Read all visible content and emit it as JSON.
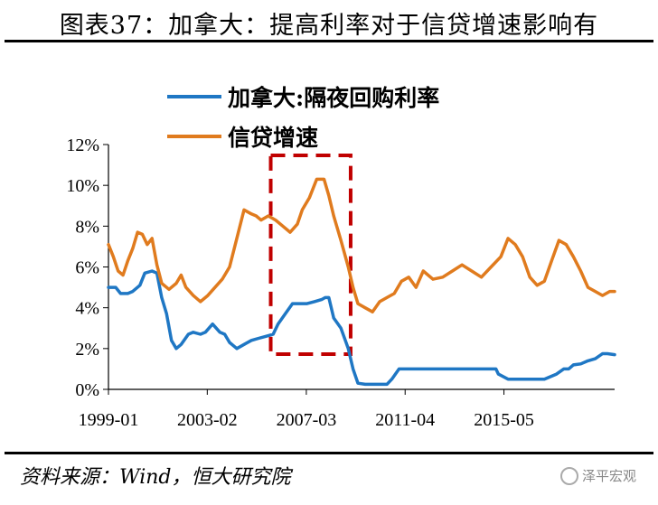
{
  "page": {
    "title": "图表37：加拿大：提高利率对于信贷增速影响有",
    "source": "资料来源：Wind，恒大研究院",
    "watermark": "泽平宏观"
  },
  "chart_data": {
    "type": "line",
    "title": "图表37：加拿大：提高利率对于信贷增速影响有",
    "xlabel": "",
    "ylabel": "",
    "ylim": [
      0,
      12
    ],
    "yticks": [
      0,
      2,
      4,
      6,
      8,
      10,
      12
    ],
    "ytick_labels": [
      "0%",
      "2%",
      "4%",
      "6%",
      "8%",
      "10%",
      "12%"
    ],
    "x_range": [
      1999.0,
      2019.9
    ],
    "xtick_labels": [
      "1999-01",
      "2003-02",
      "2007-03",
      "2011-04",
      "2015-05"
    ],
    "xtick_positions": [
      1999.0,
      2003.08,
      2007.17,
      2011.25,
      2015.33
    ],
    "highlight_range": [
      2005.7,
      2009.0
    ],
    "highlight_color": "#c00000",
    "legend_position": "top-left",
    "series": [
      {
        "name": "加拿大:隔夜回购利率",
        "color": "#1f77c4",
        "x": [
          1999.0,
          1999.3,
          1999.5,
          1999.8,
          2000.0,
          2000.3,
          2000.5,
          2000.8,
          2001.0,
          2001.2,
          2001.4,
          2001.6,
          2001.8,
          2002.0,
          2002.3,
          2002.5,
          2002.8,
          2003.0,
          2003.3,
          2003.6,
          2003.8,
          2004.0,
          2004.3,
          2004.6,
          2004.9,
          2005.2,
          2005.5,
          2005.8,
          2006.0,
          2006.3,
          2006.6,
          2006.9,
          2007.2,
          2007.5,
          2007.8,
          2007.95,
          2008.1,
          2008.3,
          2008.6,
          2008.9,
          2009.1,
          2009.3,
          2009.6,
          2010.0,
          2010.5,
          2010.7,
          2011.0,
          2012.0,
          2013.0,
          2014.0,
          2015.0,
          2015.1,
          2015.5,
          2016.0,
          2017.0,
          2017.5,
          2017.8,
          2018.0,
          2018.2,
          2018.5,
          2018.8,
          2019.1,
          2019.4,
          2019.6,
          2019.9
        ],
        "values": [
          5.0,
          5.0,
          4.7,
          4.7,
          4.8,
          5.1,
          5.7,
          5.8,
          5.7,
          4.5,
          3.7,
          2.4,
          2.0,
          2.2,
          2.7,
          2.8,
          2.7,
          2.8,
          3.2,
          2.8,
          2.7,
          2.3,
          2.0,
          2.2,
          2.4,
          2.5,
          2.6,
          2.7,
          3.2,
          3.7,
          4.2,
          4.2,
          4.2,
          4.3,
          4.4,
          4.5,
          4.5,
          3.5,
          3.0,
          2.0,
          1.0,
          0.3,
          0.25,
          0.25,
          0.25,
          0.5,
          1.0,
          1.0,
          1.0,
          1.0,
          1.0,
          0.75,
          0.5,
          0.5,
          0.5,
          0.75,
          1.0,
          1.0,
          1.2,
          1.25,
          1.4,
          1.5,
          1.75,
          1.75,
          1.7
        ]
      },
      {
        "name": "信贷增速",
        "color": "#e07b1e",
        "x": [
          1999.0,
          1999.2,
          1999.4,
          1999.6,
          1999.8,
          2000.0,
          2000.2,
          2000.4,
          2000.6,
          2000.8,
          2001.0,
          2001.2,
          2001.5,
          2001.8,
          2002.0,
          2002.2,
          2002.5,
          2002.8,
          2003.1,
          2003.4,
          2003.7,
          2004.0,
          2004.3,
          2004.6,
          2004.9,
          2005.1,
          2005.3,
          2005.6,
          2005.9,
          2006.2,
          2006.5,
          2006.8,
          2007.0,
          2007.3,
          2007.6,
          2007.9,
          2008.1,
          2008.3,
          2008.6,
          2008.9,
          2009.1,
          2009.3,
          2009.6,
          2009.9,
          2010.2,
          2010.5,
          2010.8,
          2011.1,
          2011.4,
          2011.7,
          2012.0,
          2012.4,
          2012.8,
          2013.2,
          2013.6,
          2014.0,
          2014.4,
          2014.8,
          2015.2,
          2015.5,
          2015.8,
          2016.1,
          2016.4,
          2016.7,
          2017.0,
          2017.3,
          2017.6,
          2017.9,
          2018.2,
          2018.5,
          2018.8,
          2019.1,
          2019.4,
          2019.7,
          2019.9
        ],
        "values": [
          7.1,
          6.5,
          5.8,
          5.6,
          6.3,
          6.9,
          7.7,
          7.6,
          7.1,
          7.4,
          6.1,
          5.2,
          4.9,
          5.2,
          5.6,
          5.0,
          4.6,
          4.3,
          4.6,
          5.0,
          5.4,
          6.0,
          7.4,
          8.8,
          8.6,
          8.5,
          8.3,
          8.5,
          8.3,
          8.0,
          7.7,
          8.1,
          8.8,
          9.4,
          10.3,
          10.3,
          9.5,
          8.5,
          7.3,
          6.0,
          5.0,
          4.2,
          4.0,
          3.8,
          4.3,
          4.5,
          4.7,
          5.3,
          5.5,
          5.0,
          5.8,
          5.4,
          5.5,
          5.8,
          6.1,
          5.8,
          5.5,
          6.0,
          6.5,
          7.4,
          7.1,
          6.5,
          5.5,
          5.1,
          5.3,
          6.3,
          7.3,
          7.1,
          6.5,
          5.8,
          5.0,
          4.8,
          4.6,
          4.8,
          4.8
        ]
      }
    ]
  }
}
